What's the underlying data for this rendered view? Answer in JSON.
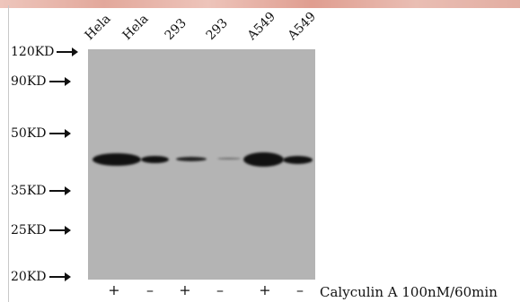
{
  "lanes": [
    {
      "label": "Hela"
    },
    {
      "label": "Hela"
    },
    {
      "label": "293"
    },
    {
      "label": "293"
    },
    {
      "label": "A549"
    },
    {
      "label": "A549"
    }
  ],
  "markers": [
    {
      "label": "120KD"
    },
    {
      "label": "90KD"
    },
    {
      "label": "50KD"
    },
    {
      "label": "35KD"
    },
    {
      "label": "25KD"
    },
    {
      "label": "20KD"
    }
  ],
  "treatment": {
    "signs": [
      "+",
      "–",
      "+",
      "–",
      "+",
      "–"
    ],
    "label": "Calyculin A 100nM/60min"
  }
}
